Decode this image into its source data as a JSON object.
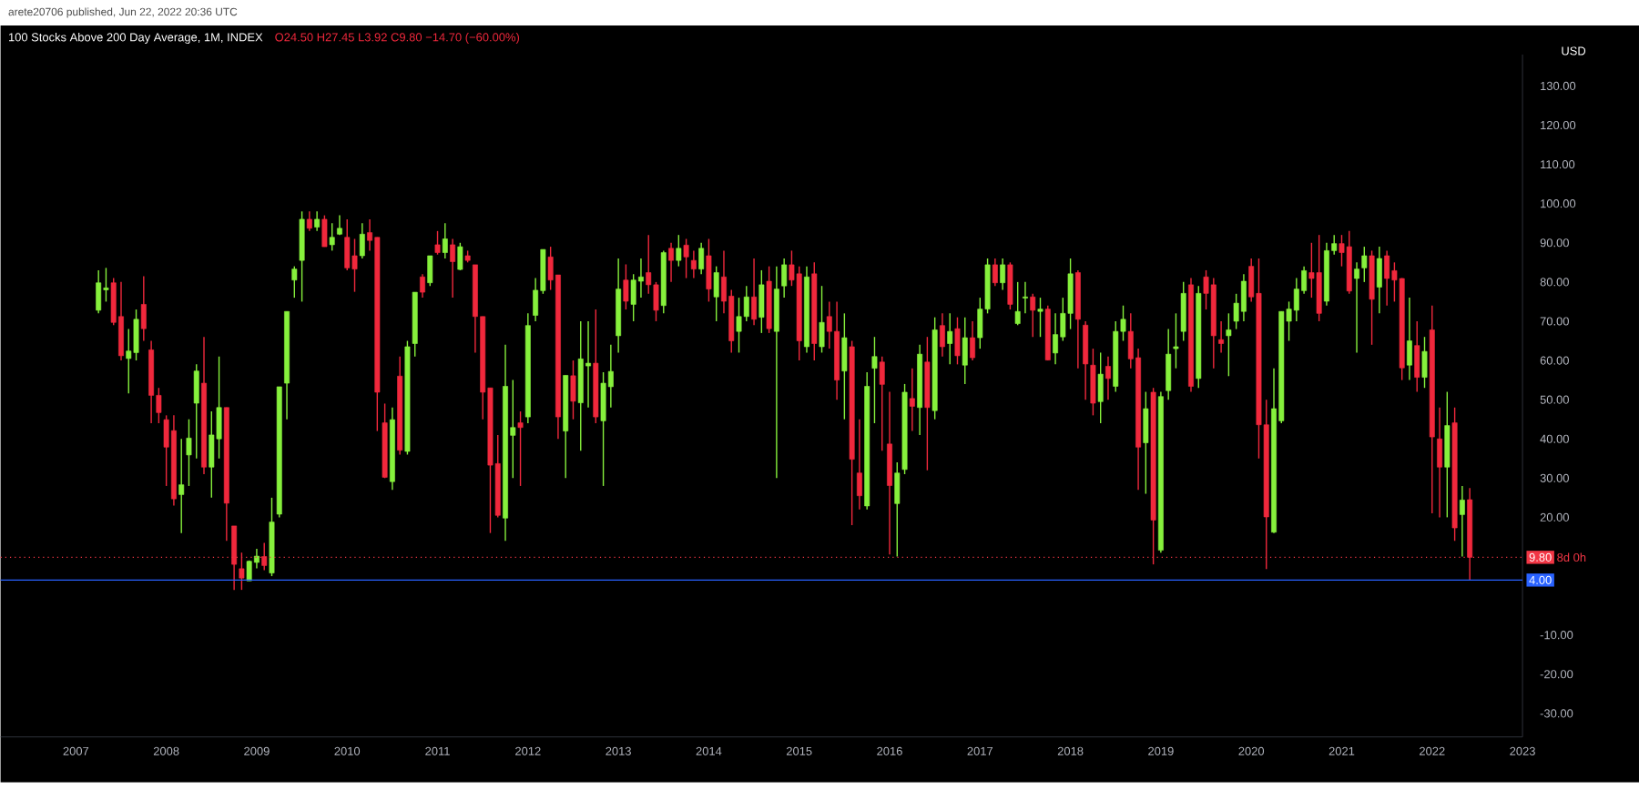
{
  "chart_data": {
    "type": "candlestick",
    "title": "100 Stocks Above 200 Day Average, 1M, INDEX",
    "subtitle": "O24.50 H27.45 L3.92 C9.80 −14.70 (−60.00%)",
    "ylabel": "USD",
    "annotations": [
      "arete20706 published, Jun 22, 2022 20:36 UTC",
      "8d 0h"
    ],
    "x": [
      "2007-04",
      "2007-05",
      "2007-06",
      "2007-07",
      "2007-08",
      "2007-09",
      "2007-10",
      "2007-11",
      "2007-12",
      "2008-01",
      "2008-02",
      "2008-03",
      "2008-04",
      "2008-05",
      "2008-06",
      "2008-07",
      "2008-08",
      "2008-09",
      "2008-10",
      "2008-11",
      "2008-12",
      "2009-01",
      "2009-02",
      "2009-03",
      "2009-04",
      "2009-05",
      "2009-06",
      "2009-07",
      "2009-08",
      "2009-09",
      "2009-10",
      "2009-11",
      "2009-12",
      "2010-01",
      "2010-02",
      "2010-03",
      "2010-04",
      "2010-05",
      "2010-06",
      "2010-07",
      "2010-08",
      "2010-09",
      "2010-10",
      "2010-11",
      "2010-12",
      "2011-01",
      "2011-02",
      "2011-03",
      "2011-04",
      "2011-05",
      "2011-06",
      "2011-07",
      "2011-08",
      "2011-09",
      "2011-10",
      "2011-11",
      "2011-12",
      "2012-01",
      "2012-02",
      "2012-03",
      "2012-04",
      "2012-05",
      "2012-06",
      "2012-07",
      "2012-08",
      "2012-09",
      "2012-10",
      "2012-11",
      "2012-12",
      "2013-01",
      "2013-02",
      "2013-03",
      "2013-04",
      "2013-05",
      "2013-06",
      "2013-07",
      "2013-08",
      "2013-09",
      "2013-10",
      "2013-11",
      "2013-12",
      "2014-01",
      "2014-02",
      "2014-03",
      "2014-04",
      "2014-05",
      "2014-06",
      "2014-07",
      "2014-08",
      "2014-09",
      "2014-10",
      "2014-11",
      "2014-12",
      "2015-01",
      "2015-02",
      "2015-03",
      "2015-04",
      "2015-05",
      "2015-06",
      "2015-07",
      "2015-08",
      "2015-09",
      "2015-10",
      "2015-11",
      "2015-12",
      "2016-01",
      "2016-02",
      "2016-03",
      "2016-04",
      "2016-05",
      "2016-06",
      "2016-07",
      "2016-08",
      "2016-09",
      "2016-10",
      "2016-11",
      "2016-12",
      "2017-01",
      "2017-02",
      "2017-03",
      "2017-04",
      "2017-05",
      "2017-06",
      "2017-07",
      "2017-08",
      "2017-09",
      "2017-10",
      "2017-11",
      "2017-12",
      "2018-01",
      "2018-02",
      "2018-03",
      "2018-04",
      "2018-05",
      "2018-06",
      "2018-07",
      "2018-08",
      "2018-09",
      "2018-10",
      "2018-11",
      "2018-12",
      "2019-01",
      "2019-02",
      "2019-03",
      "2019-04",
      "2019-05",
      "2019-06",
      "2019-07",
      "2019-08",
      "2019-09",
      "2019-10",
      "2019-11",
      "2019-12",
      "2020-01",
      "2020-02",
      "2020-03",
      "2020-04",
      "2020-05",
      "2020-06",
      "2020-07",
      "2020-08",
      "2020-09",
      "2020-10",
      "2020-11",
      "2020-12",
      "2021-01",
      "2021-02",
      "2021-03",
      "2021-04",
      "2021-05",
      "2021-06",
      "2021-07",
      "2021-08",
      "2021-09",
      "2021-10",
      "2021-11",
      "2021-12",
      "2022-01",
      "2022-02",
      "2022-03",
      "2022-04",
      "2022-05",
      "2022-06"
    ],
    "ohlc": [
      [
        72.8,
        83,
        72,
        79.8
      ],
      [
        78,
        83.6,
        75,
        78.5
      ],
      [
        79.8,
        81,
        69,
        69.7
      ],
      [
        71.2,
        80,
        60,
        61.2
      ],
      [
        60.5,
        68,
        51.6,
        62.4
      ],
      [
        62,
        73,
        60,
        70.5
      ],
      [
        74.3,
        81.5,
        65,
        68.1
      ],
      [
        62.7,
        65,
        44,
        51.1
      ],
      [
        51.1,
        53,
        44,
        46.7
      ],
      [
        44.9,
        46,
        28,
        37.9
      ],
      [
        42.1,
        46,
        23,
        24.7
      ],
      [
        25.8,
        40,
        16,
        28.3
      ],
      [
        35.9,
        45,
        28,
        40.2
      ],
      [
        49.1,
        59,
        35,
        57.3
      ],
      [
        54.2,
        66,
        31,
        32.8
      ],
      [
        32.8,
        47,
        25,
        41
      ],
      [
        40,
        61,
        35,
        48
      ],
      [
        48,
        48,
        14,
        23.6
      ],
      [
        17.8,
        17.8,
        1.5,
        8
      ],
      [
        6.9,
        11,
        1.5,
        4.5
      ],
      [
        3.8,
        9,
        3.8,
        8.8
      ],
      [
        8.5,
        12,
        7,
        10.1
      ],
      [
        10,
        13.5,
        6.5,
        7.7
      ],
      [
        5.8,
        25,
        5,
        18.8
      ],
      [
        20.8,
        53.3,
        20,
        53.3
      ],
      [
        54.2,
        72.5,
        45,
        72.5
      ],
      [
        80.5,
        84,
        76,
        83.3
      ],
      [
        85.5,
        98,
        75,
        96
      ],
      [
        96,
        98,
        93,
        93.7
      ],
      [
        94,
        98,
        93,
        96
      ],
      [
        96,
        97,
        89,
        89
      ],
      [
        89.5,
        95,
        88,
        91.4
      ],
      [
        92.2,
        97,
        92,
        93.7
      ],
      [
        91.4,
        96,
        83,
        83.6
      ],
      [
        86.7,
        91,
        77.5,
        83.3
      ],
      [
        86.7,
        95,
        86,
        92.2
      ],
      [
        92.6,
        96,
        88,
        90.6
      ],
      [
        91.4,
        91.4,
        42,
        51.9
      ],
      [
        44.1,
        49,
        30,
        30.2
      ],
      [
        29.1,
        48,
        27,
        44.9
      ],
      [
        56,
        61,
        36,
        37.1
      ],
      [
        36.8,
        65,
        36,
        63.5
      ],
      [
        64.3,
        77.4,
        61,
        77.4
      ],
      [
        81.3,
        82,
        76,
        77.4
      ],
      [
        79.8,
        86.7,
        79,
        86.7
      ],
      [
        89.5,
        93,
        87,
        87.5
      ],
      [
        87.5,
        95,
        86,
        91
      ],
      [
        89.5,
        91,
        76,
        85.2
      ],
      [
        83.2,
        90,
        83,
        89
      ],
      [
        86.7,
        88,
        85,
        85.5
      ],
      [
        84.4,
        84.4,
        62,
        71.2
      ],
      [
        71.2,
        71.2,
        45,
        51.9
      ],
      [
        53,
        53,
        16,
        33.3
      ],
      [
        33.7,
        41,
        20,
        20.5
      ],
      [
        19.8,
        64,
        14,
        53.4
      ],
      [
        40.9,
        55,
        30,
        42.9
      ],
      [
        44.1,
        47,
        28,
        42.9
      ],
      [
        45.6,
        72,
        44,
        68.9
      ],
      [
        71.5,
        81,
        70,
        77.9
      ],
      [
        77.8,
        88.3,
        77,
        88.3
      ],
      [
        86.4,
        89,
        78,
        80.5
      ],
      [
        81.8,
        81.8,
        40,
        45.6
      ],
      [
        42,
        56.2,
        30,
        56.2
      ],
      [
        56.1,
        60,
        45,
        49.6
      ],
      [
        49.2,
        70,
        37,
        60.4
      ],
      [
        58.6,
        70,
        48,
        59.3
      ],
      [
        59.3,
        73,
        44,
        45.6
      ],
      [
        44.6,
        57,
        28,
        54.2
      ],
      [
        53.3,
        64,
        48,
        57.2
      ],
      [
        66.3,
        86,
        62,
        78.2
      ],
      [
        80.5,
        84.5,
        73,
        75.1
      ],
      [
        74.3,
        82,
        70,
        80.5
      ],
      [
        80.2,
        86,
        76,
        81.3
      ],
      [
        82.4,
        92,
        77,
        79.3
      ],
      [
        79.3,
        80,
        70,
        72.8
      ],
      [
        74,
        88,
        72,
        87.5
      ],
      [
        88.6,
        90,
        80,
        85.5
      ],
      [
        85.5,
        92,
        84,
        88.6
      ],
      [
        89.4,
        91,
        81,
        86.4
      ],
      [
        85.5,
        88,
        81,
        83.3
      ],
      [
        83.3,
        90,
        82,
        88.6
      ],
      [
        86.7,
        91,
        75,
        78.2
      ],
      [
        76.2,
        84,
        70,
        82.4
      ],
      [
        81.3,
        88,
        72,
        75.1
      ],
      [
        76.4,
        78,
        62,
        65
      ],
      [
        67.4,
        76,
        62,
        71.2
      ],
      [
        71.2,
        79,
        70,
        76.2
      ],
      [
        76.2,
        86,
        69,
        70.5
      ],
      [
        71,
        83,
        67,
        79.3
      ],
      [
        80.2,
        84,
        67,
        68.1
      ],
      [
        67.4,
        84,
        30,
        78.2
      ],
      [
        79,
        86,
        76,
        84.4
      ],
      [
        84.4,
        88,
        79,
        80.5
      ],
      [
        82.1,
        84,
        60,
        65
      ],
      [
        63.5,
        84,
        62,
        81.3
      ],
      [
        82.1,
        85,
        60,
        64.3
      ],
      [
        63.5,
        79,
        62,
        69.7
      ],
      [
        71.2,
        75,
        63,
        67.4
      ],
      [
        67.4,
        75,
        50,
        55
      ],
      [
        57.3,
        72,
        45,
        65.8
      ],
      [
        63.5,
        65,
        18,
        34.8
      ],
      [
        31.3,
        45,
        22,
        25.5
      ],
      [
        22.9,
        57,
        22,
        53.4
      ],
      [
        58,
        66,
        44,
        61
      ],
      [
        59.6,
        61,
        37,
        53.9
      ],
      [
        38.7,
        52,
        10.5,
        28.1
      ],
      [
        23.5,
        34,
        10,
        31.3
      ],
      [
        32.2,
        54,
        31,
        51.9
      ],
      [
        50.3,
        58,
        42,
        48.3
      ],
      [
        48,
        64,
        41,
        61.6
      ],
      [
        59.6,
        66,
        32,
        48
      ],
      [
        47.2,
        71,
        45,
        67.8
      ],
      [
        68.9,
        72,
        61,
        63.5
      ],
      [
        64.3,
        72,
        59,
        67.4
      ],
      [
        68.1,
        71,
        59,
        61.2
      ],
      [
        58.8,
        71,
        54,
        65.8
      ],
      [
        65.8,
        70,
        60,
        60.7
      ],
      [
        65.8,
        76,
        63,
        73.1
      ],
      [
        73.1,
        86,
        72,
        84.4
      ],
      [
        84.4,
        86,
        79,
        79.8
      ],
      [
        79.8,
        86,
        78,
        84.4
      ],
      [
        84.4,
        85,
        73,
        74.3
      ],
      [
        69.4,
        80,
        69,
        72.5
      ],
      [
        75.9,
        80,
        72,
        76.2
      ],
      [
        76.2,
        77,
        66,
        72.8
      ],
      [
        72.5,
        76,
        66,
        73.1
      ],
      [
        73.1,
        74,
        60,
        60.1
      ],
      [
        61.9,
        72,
        59,
        66.6
      ],
      [
        66,
        76,
        65,
        72
      ],
      [
        72,
        86,
        68,
        82.1
      ],
      [
        82.4,
        83,
        58,
        70.5
      ],
      [
        69,
        70,
        50,
        59.1
      ],
      [
        58.8,
        63,
        46,
        49.1
      ],
      [
        49.5,
        62,
        44,
        56.5
      ],
      [
        58.5,
        61,
        50,
        55.4
      ],
      [
        53.4,
        70,
        52,
        67.4
      ],
      [
        67.4,
        74,
        65,
        70.5
      ],
      [
        67.4,
        72,
        58,
        60.4
      ],
      [
        60.7,
        63,
        27,
        37.9
      ],
      [
        39,
        52,
        26,
        47.7
      ],
      [
        51.9,
        53,
        8,
        19.3
      ],
      [
        11.6,
        52,
        11,
        50.8
      ],
      [
        52.3,
        68,
        50,
        61.6
      ],
      [
        63,
        72,
        58,
        63.5
      ],
      [
        67.4,
        80,
        65,
        77.1
      ],
      [
        79.3,
        81,
        52,
        53.4
      ],
      [
        55.4,
        79,
        53,
        77.1
      ],
      [
        81.3,
        83,
        73,
        77.1
      ],
      [
        79.3,
        81,
        58,
        66.3
      ],
      [
        65.3,
        70,
        62,
        64.3
      ],
      [
        66.3,
        72,
        56,
        67.8
      ],
      [
        70,
        77,
        68,
        74.6
      ],
      [
        72.5,
        82,
        70,
        80.2
      ],
      [
        84,
        86,
        75,
        76.2
      ],
      [
        77.1,
        86,
        35,
        43.6
      ],
      [
        43.6,
        50,
        6.8,
        20.1
      ],
      [
        16.2,
        58,
        16,
        47.7
      ],
      [
        44.6,
        72.5,
        44,
        72.5
      ],
      [
        70,
        75,
        65,
        73.1
      ],
      [
        72.8,
        81,
        70,
        78.2
      ],
      [
        77.8,
        84,
        77,
        82.9
      ],
      [
        82.4,
        90,
        76,
        80.9
      ],
      [
        82.4,
        92,
        70,
        72
      ],
      [
        75.1,
        90,
        74,
        88
      ],
      [
        88,
        92,
        87,
        89.8
      ],
      [
        89.8,
        92,
        84,
        87.5
      ],
      [
        89,
        93,
        77,
        77.7
      ],
      [
        80.9,
        85,
        62,
        83.3
      ],
      [
        83.6,
        89,
        80,
        86.7
      ],
      [
        86.7,
        88,
        64,
        75.6
      ],
      [
        78.7,
        89,
        72,
        86
      ],
      [
        86.7,
        88,
        74,
        80.9
      ],
      [
        82.9,
        85,
        75,
        80.5
      ],
      [
        80.9,
        81,
        55,
        58.1
      ],
      [
        58.8,
        76,
        55,
        65
      ],
      [
        63.8,
        70,
        52,
        55.7
      ],
      [
        55.7,
        66,
        53,
        62.3
      ],
      [
        67.8,
        74,
        21,
        40.5
      ],
      [
        40,
        48,
        20,
        32.8
      ],
      [
        32.8,
        52,
        20,
        43.4
      ],
      [
        44.1,
        48,
        14,
        17.3
      ],
      [
        20.7,
        28,
        10,
        24.4
      ],
      [
        24.5,
        27.45,
        3.92,
        9.8
      ]
    ],
    "xlim": [
      "2006-03",
      "2023-01"
    ],
    "xticks": [
      "2007",
      "2008",
      "2009",
      "2010",
      "2011",
      "2012",
      "2013",
      "2014",
      "2015",
      "2016",
      "2017",
      "2018",
      "2019",
      "2020",
      "2021",
      "2022",
      "2023"
    ],
    "ylim": [
      -36,
      138
    ],
    "yticks": [
      {
        "value": 130,
        "label": "130.00"
      },
      {
        "value": 120,
        "label": "120.00"
      },
      {
        "value": 110,
        "label": "110.00"
      },
      {
        "value": 100,
        "label": "100.00"
      },
      {
        "value": 90,
        "label": "90.00"
      },
      {
        "value": 80,
        "label": "80.00"
      },
      {
        "value": 70,
        "label": "70.00"
      },
      {
        "value": 60,
        "label": "60.00"
      },
      {
        "value": 50,
        "label": "50.00"
      },
      {
        "value": 40,
        "label": "40.00"
      },
      {
        "value": 30,
        "label": "30.00"
      },
      {
        "value": 20,
        "label": "20.00"
      },
      {
        "value": -10,
        "label": "-10.00"
      },
      {
        "value": -20,
        "label": "-20.00"
      },
      {
        "value": -30,
        "label": "-30.00"
      }
    ],
    "ref_lines": [
      {
        "axis": "y",
        "value": 9.8,
        "label": "9.80",
        "color": "#f23645",
        "line_style": "dotted"
      },
      {
        "axis": "y",
        "value": 4,
        "label": "4.00",
        "color": "#2962ff",
        "line_style": "solid"
      }
    ]
  }
}
